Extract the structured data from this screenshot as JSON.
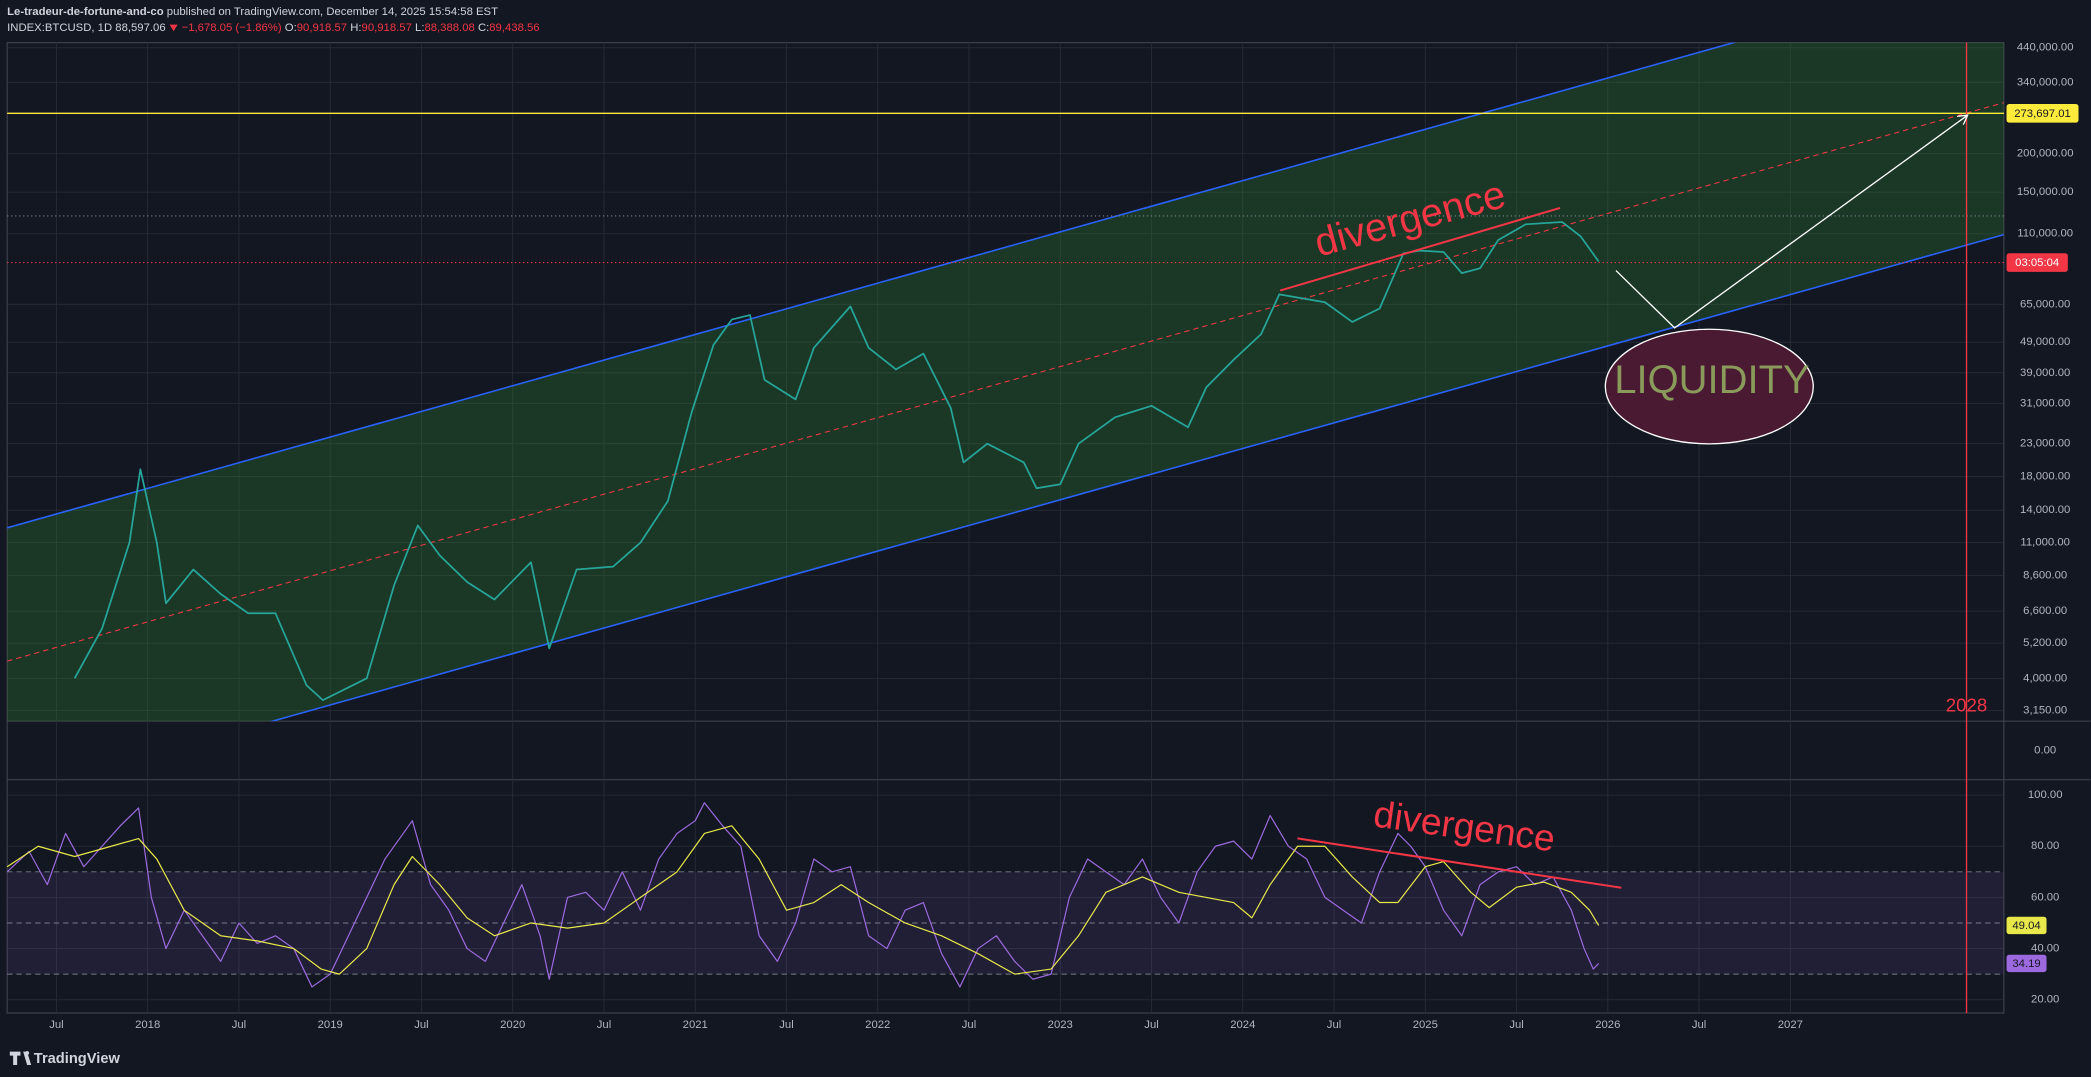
{
  "header": {
    "author": "Le-tradeur-de-fortune-and-co",
    "published": "published on TradingView.com, December 14, 2025 15:54:58 EST",
    "symbol": "INDEX:BTCUSD, 1D",
    "last": "88,597.06",
    "change": "−1,678.05 (−1.86%)",
    "open_label": "O:",
    "open": "90,918.57",
    "high_label": "H:",
    "high": "90,918.57",
    "low_label": "L:",
    "low": "88,388.08",
    "close_label": "C:",
    "close": "89,438.56"
  },
  "annotations": {
    "divergence_price": "divergence",
    "liquidity": "LIQUIDITY",
    "divergence_rsi": "divergence",
    "target_price": "273,697.01",
    "countdown": "03:05:04",
    "year_marker": "2028"
  },
  "footer": {
    "brand": "TradingView"
  },
  "chart_data": [
    {
      "type": "line",
      "log": true,
      "grid": true,
      "color": "#26a69a",
      "xlim": [
        2017.23,
        2028.17
      ],
      "ylim": [
        2908,
        457000
      ],
      "yticks": [
        {
          "value": 440000,
          "label": "440,000.00"
        },
        {
          "value": 340000,
          "label": "340,000.00"
        },
        {
          "value": 200000,
          "label": "200,000.00"
        },
        {
          "value": 150000,
          "label": "150,000.00"
        },
        {
          "value": 110000,
          "label": "110,000.00"
        },
        {
          "value": 65000,
          "label": "65,000.00"
        },
        {
          "value": 49000,
          "label": "49,000.00"
        },
        {
          "value": 39000,
          "label": "39,000.00"
        },
        {
          "value": 31000,
          "label": "31,000.00"
        },
        {
          "value": 23000,
          "label": "23,000.00"
        },
        {
          "value": 18000,
          "label": "18,000.00"
        },
        {
          "value": 14000,
          "label": "14,000.00"
        },
        {
          "value": 11000,
          "label": "11,000.00"
        },
        {
          "value": 8600,
          "label": "8,600.00"
        },
        {
          "value": 6600,
          "label": "6,600.00"
        },
        {
          "value": 5200,
          "label": "5,200.00"
        },
        {
          "value": 4000,
          "label": "4,000.00"
        },
        {
          "value": 3150,
          "label": "3,150.00"
        }
      ],
      "x": [
        2017.6,
        2017.75,
        2017.9,
        2017.96,
        2018.05,
        2018.1,
        2018.25,
        2018.4,
        2018.55,
        2018.7,
        2018.87,
        2018.96,
        2019.2,
        2019.35,
        2019.48,
        2019.6,
        2019.75,
        2019.9,
        2020.1,
        2020.2,
        2020.35,
        2020.55,
        2020.7,
        2020.85,
        2020.98,
        2021.1,
        2021.2,
        2021.3,
        2021.38,
        2021.55,
        2021.65,
        2021.85,
        2021.95,
        2022.1,
        2022.25,
        2022.4,
        2022.47,
        2022.6,
        2022.8,
        2022.87,
        2023.0,
        2023.1,
        2023.3,
        2023.5,
        2023.7,
        2023.8,
        2023.95,
        2024.1,
        2024.2,
        2024.45,
        2024.6,
        2024.75,
        2024.88,
        2024.97,
        2025.1,
        2025.2,
        2025.3,
        2025.4,
        2025.55,
        2025.75,
        2025.85,
        2025.95
      ],
      "values": [
        4000,
        5800,
        11000,
        19000,
        11000,
        7000,
        9000,
        7500,
        6500,
        6500,
        3800,
        3400,
        4000,
        8000,
        12500,
        10000,
        8200,
        7200,
        9500,
        5000,
        9000,
        9200,
        11000,
        15000,
        29000,
        48000,
        58000,
        60000,
        37000,
        32000,
        47000,
        64000,
        47000,
        40000,
        45000,
        30000,
        20000,
        23000,
        20000,
        16500,
        17000,
        23000,
        28000,
        30500,
        26000,
        35000,
        43000,
        52000,
        70000,
        66000,
        57000,
        63000,
        95000,
        97000,
        96000,
        82000,
        85000,
        105000,
        118000,
        120000,
        108000,
        89438
      ]
    },
    {
      "type": "line",
      "grid": false,
      "xlim": [
        2017.23,
        2028.17
      ],
      "ylim": [
        -1,
        1
      ],
      "yticks": [
        {
          "value": 0,
          "label": "0.00"
        }
      ],
      "series": []
    },
    {
      "type": "line",
      "grid": true,
      "xlim": [
        2017.23,
        2028.17
      ],
      "ylim": [
        14.8,
        106
      ],
      "yticks": [
        {
          "value": 100,
          "label": "100.00"
        },
        {
          "value": 80,
          "label": "80.00"
        },
        {
          "value": 60,
          "label": "60.00"
        },
        {
          "value": 40,
          "label": "40.00"
        },
        {
          "value": 20,
          "label": "20.00"
        }
      ],
      "hlines": [
        70,
        50,
        30
      ],
      "xticks": [
        {
          "value": 2017.5,
          "label": "Jul"
        },
        2018,
        {
          "value": 2018.5,
          "label": "Jul"
        },
        2019,
        {
          "value": 2019.5,
          "label": "Jul"
        },
        2020,
        {
          "value": 2020.5,
          "label": "Jul"
        },
        2021,
        {
          "value": 2021.5,
          "label": "Jul"
        },
        2022,
        {
          "value": 2022.5,
          "label": "Jul"
        },
        2023,
        {
          "value": 2023.5,
          "label": "Jul"
        },
        2024,
        {
          "value": 2024.5,
          "label": "Jul"
        },
        2025,
        {
          "value": 2025.5,
          "label": "Jul"
        },
        2026,
        {
          "value": 2026.5,
          "label": "Jul"
        },
        2027
      ],
      "series": [
        {
          "color": "#9c6ade",
          "x": [
            2017.23,
            2017.35,
            2017.45,
            2017.55,
            2017.65,
            2017.75,
            2017.85,
            2017.95,
            2018.02,
            2018.1,
            2018.2,
            2018.3,
            2018.4,
            2018.5,
            2018.6,
            2018.7,
            2018.8,
            2018.9,
            2019.0,
            2019.1,
            2019.2,
            2019.3,
            2019.45,
            2019.55,
            2019.65,
            2019.75,
            2019.85,
            2019.95,
            2020.05,
            2020.15,
            2020.2,
            2020.3,
            2020.4,
            2020.5,
            2020.6,
            2020.7,
            2020.8,
            2020.9,
            2021.0,
            2021.05,
            2021.15,
            2021.25,
            2021.35,
            2021.45,
            2021.55,
            2021.65,
            2021.75,
            2021.85,
            2021.95,
            2022.05,
            2022.15,
            2022.25,
            2022.35,
            2022.45,
            2022.55,
            2022.65,
            2022.75,
            2022.85,
            2022.95,
            2023.05,
            2023.15,
            2023.25,
            2023.35,
            2023.45,
            2023.55,
            2023.65,
            2023.75,
            2023.85,
            2023.95,
            2024.05,
            2024.15,
            2024.25,
            2024.35,
            2024.45,
            2024.55,
            2024.65,
            2024.75,
            2024.85,
            2024.92,
            2025.0,
            2025.1,
            2025.2,
            2025.3,
            2025.4,
            2025.5,
            2025.6,
            2025.7,
            2025.8,
            2025.87,
            2025.92,
            2025.95
          ],
          "values": [
            70,
            78,
            65,
            85,
            72,
            80,
            88,
            95,
            60,
            40,
            55,
            45,
            35,
            50,
            42,
            45,
            40,
            25,
            30,
            45,
            60,
            75,
            90,
            65,
            55,
            40,
            35,
            50,
            65,
            45,
            28,
            60,
            62,
            55,
            70,
            55,
            75,
            85,
            90,
            97,
            88,
            80,
            45,
            35,
            50,
            75,
            70,
            72,
            45,
            40,
            55,
            58,
            38,
            25,
            40,
            45,
            35,
            28,
            30,
            60,
            75,
            70,
            65,
            75,
            60,
            50,
            70,
            80,
            82,
            75,
            92,
            80,
            75,
            60,
            55,
            50,
            70,
            85,
            80,
            72,
            55,
            45,
            65,
            70,
            72,
            65,
            68,
            55,
            40,
            32,
            34.19
          ]
        },
        {
          "color": "#e8e84a",
          "x": [
            2017.23,
            2017.4,
            2017.6,
            2017.8,
            2017.95,
            2018.05,
            2018.2,
            2018.4,
            2018.6,
            2018.8,
            2018.95,
            2019.05,
            2019.2,
            2019.35,
            2019.45,
            2019.6,
            2019.75,
            2019.9,
            2020.1,
            2020.3,
            2020.5,
            2020.7,
            2020.9,
            2021.05,
            2021.2,
            2021.35,
            2021.5,
            2021.65,
            2021.8,
            2021.95,
            2022.15,
            2022.35,
            2022.55,
            2022.75,
            2022.95,
            2023.1,
            2023.25,
            2023.45,
            2023.65,
            2023.8,
            2023.95,
            2024.05,
            2024.15,
            2024.3,
            2024.45,
            2024.6,
            2024.75,
            2024.85,
            2025.0,
            2025.1,
            2025.25,
            2025.35,
            2025.5,
            2025.65,
            2025.8,
            2025.9,
            2025.95
          ],
          "values": [
            72,
            80,
            76,
            80,
            83,
            75,
            55,
            45,
            43,
            40,
            32,
            30,
            40,
            65,
            76,
            65,
            52,
            45,
            50,
            48,
            50,
            60,
            70,
            85,
            88,
            75,
            55,
            58,
            65,
            58,
            50,
            45,
            38,
            30,
            32,
            45,
            62,
            68,
            62,
            60,
            58,
            52,
            65,
            80,
            80,
            68,
            58,
            58,
            72,
            74,
            62,
            56,
            64,
            66,
            62,
            55,
            49.04
          ]
        }
      ]
    }
  ]
}
